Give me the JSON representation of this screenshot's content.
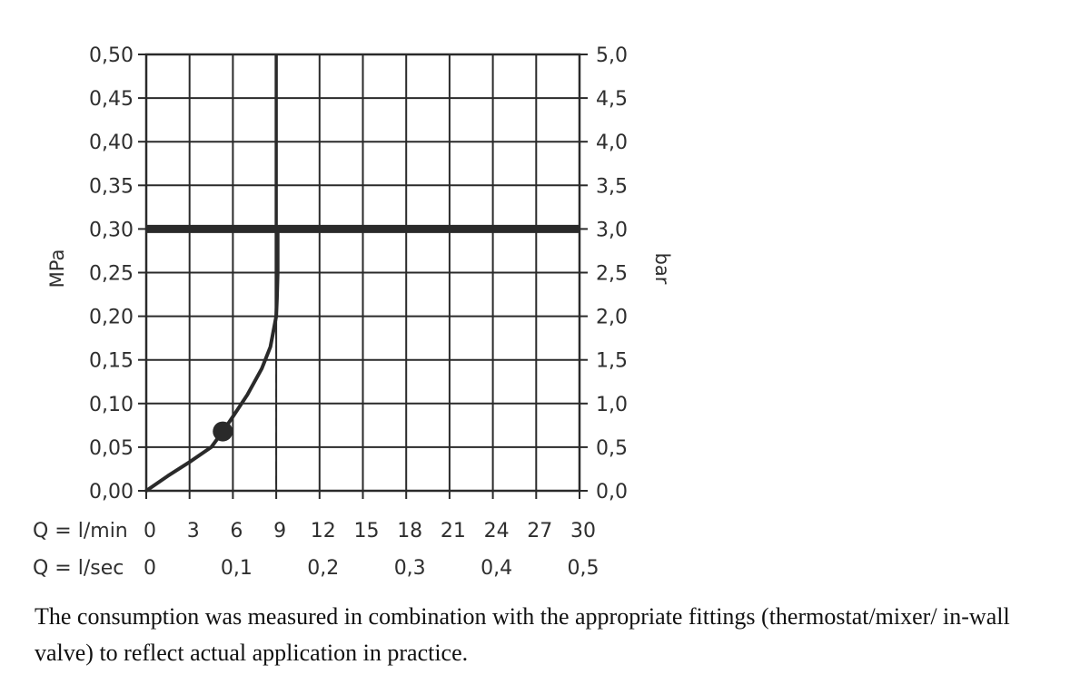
{
  "chart_data": {
    "type": "line",
    "y_left": {
      "label": "MPa",
      "ticks": [
        "0,50",
        "0,45",
        "0,40",
        "0,35",
        "0,30",
        "0,25",
        "0,20",
        "0,15",
        "0,10",
        "0,05",
        "0,00"
      ],
      "range": [
        0,
        0.5
      ]
    },
    "y_right": {
      "label": "bar",
      "ticks": [
        "5,0",
        "4,5",
        "4,0",
        "3,5",
        "3,0",
        "2,5",
        "2,0",
        "1,5",
        "1,0",
        "0,5",
        "0,0"
      ],
      "range": [
        0,
        5.0
      ]
    },
    "x_lmin": {
      "prefix": "Q = l/min",
      "ticks": [
        "0",
        "3",
        "6",
        "9",
        "12",
        "15",
        "18",
        "21",
        "24",
        "27",
        "30"
      ],
      "range": [
        0,
        30
      ]
    },
    "x_lsec": {
      "prefix": "Q = l/sec",
      "ticks": [
        "0",
        "0,1",
        "0,2",
        "0,3",
        "0,4",
        "0,5"
      ],
      "range": [
        0,
        0.5
      ]
    },
    "grid": true,
    "series": [
      {
        "x": [
          0,
          1.5,
          3,
          4.5,
          5.3,
          6,
          7,
          8,
          8.6,
          9.0,
          9.05,
          9.1,
          9.1
        ],
        "y": [
          0.0,
          0.017,
          0.033,
          0.05,
          0.068,
          0.085,
          0.11,
          0.14,
          0.165,
          0.2,
          0.22,
          0.25,
          0.3
        ],
        "color": "#2a2a2a"
      }
    ],
    "marker": {
      "x": 5.3,
      "y": 0.068
    },
    "reference_lines": {
      "horizontal_y": 0.3,
      "vertical_x": 9.0,
      "vertical_dashed_below_y": 0.2
    }
  },
  "caption": "The consumption was measured in combination with the appropriate fittings (thermostat/mixer/ in-wall valve) to reflect actual application in practice."
}
